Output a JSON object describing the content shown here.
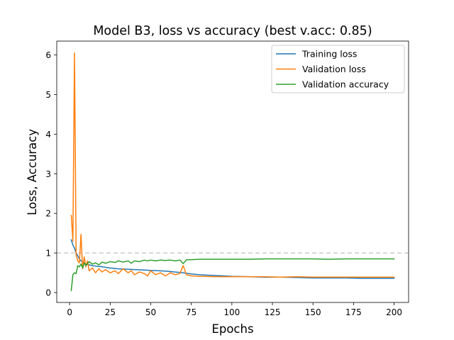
{
  "chart_data": {
    "type": "line",
    "title": "Model B3, loss vs accuracy (best v.acc: 0.85)",
    "xlabel": "Epochs",
    "ylabel": "Loss, Accuracy",
    "xlim": [
      -7.95,
      208.95
    ],
    "ylim": [
      -0.25,
      6.35
    ],
    "xticks": [
      0,
      25,
      50,
      75,
      100,
      125,
      150,
      175,
      200
    ],
    "yticks": [
      0,
      1,
      2,
      3,
      4,
      5,
      6
    ],
    "reference_line": {
      "y": 1.0,
      "style": "dashed",
      "color": "#cccccc"
    },
    "legend_position": "upper right",
    "grid": false,
    "series": [
      {
        "name": "Training loss",
        "color": "#1f77b4",
        "points": [
          [
            1,
            1.33
          ],
          [
            2,
            1.2
          ],
          [
            3,
            1.12
          ],
          [
            4,
            1.0
          ],
          [
            5,
            0.93
          ],
          [
            6,
            0.85
          ],
          [
            7,
            0.8
          ],
          [
            8,
            0.78
          ],
          [
            9,
            0.75
          ],
          [
            10,
            0.72
          ],
          [
            12,
            0.7
          ],
          [
            14,
            0.68
          ],
          [
            16,
            0.67
          ],
          [
            18,
            0.66
          ],
          [
            20,
            0.65
          ],
          [
            25,
            0.62
          ],
          [
            30,
            0.6
          ],
          [
            35,
            0.59
          ],
          [
            40,
            0.58
          ],
          [
            45,
            0.57
          ],
          [
            50,
            0.56
          ],
          [
            55,
            0.55
          ],
          [
            60,
            0.54
          ],
          [
            65,
            0.52
          ],
          [
            70,
            0.5
          ],
          [
            75,
            0.47
          ],
          [
            80,
            0.45
          ],
          [
            90,
            0.43
          ],
          [
            100,
            0.41
          ],
          [
            110,
            0.4
          ],
          [
            120,
            0.39
          ],
          [
            130,
            0.39
          ],
          [
            140,
            0.38
          ],
          [
            150,
            0.37
          ],
          [
            160,
            0.37
          ],
          [
            170,
            0.37
          ],
          [
            180,
            0.36
          ],
          [
            190,
            0.36
          ],
          [
            200,
            0.36
          ]
        ]
      },
      {
        "name": "Validation loss",
        "color": "#ff7f0e",
        "points": [
          [
            1,
            1.95
          ],
          [
            2,
            1.3
          ],
          [
            3,
            6.05
          ],
          [
            4,
            0.95
          ],
          [
            5,
            0.8
          ],
          [
            6,
            0.75
          ],
          [
            7,
            1.47
          ],
          [
            8,
            0.6
          ],
          [
            9,
            0.9
          ],
          [
            10,
            0.65
          ],
          [
            11,
            0.8
          ],
          [
            12,
            0.55
          ],
          [
            14,
            0.62
          ],
          [
            16,
            0.5
          ],
          [
            18,
            0.6
          ],
          [
            20,
            0.52
          ],
          [
            22,
            0.58
          ],
          [
            25,
            0.5
          ],
          [
            28,
            0.55
          ],
          [
            30,
            0.48
          ],
          [
            33,
            0.6
          ],
          [
            36,
            0.5
          ],
          [
            38,
            0.55
          ],
          [
            40,
            0.45
          ],
          [
            43,
            0.52
          ],
          [
            46,
            0.48
          ],
          [
            48,
            0.42
          ],
          [
            50,
            0.55
          ],
          [
            53,
            0.45
          ],
          [
            56,
            0.5
          ],
          [
            59,
            0.42
          ],
          [
            62,
            0.5
          ],
          [
            65,
            0.45
          ],
          [
            68,
            0.48
          ],
          [
            70,
            0.68
          ],
          [
            72,
            0.45
          ],
          [
            75,
            0.42
          ],
          [
            80,
            0.41
          ],
          [
            90,
            0.4
          ],
          [
            100,
            0.4
          ],
          [
            110,
            0.4
          ],
          [
            120,
            0.4
          ],
          [
            130,
            0.39
          ],
          [
            140,
            0.4
          ],
          [
            150,
            0.39
          ],
          [
            160,
            0.39
          ],
          [
            170,
            0.39
          ],
          [
            180,
            0.39
          ],
          [
            190,
            0.39
          ],
          [
            200,
            0.39
          ]
        ]
      },
      {
        "name": "Validation accuracy",
        "color": "#2ca02c",
        "points": [
          [
            1,
            0.05
          ],
          [
            2,
            0.45
          ],
          [
            3,
            0.5
          ],
          [
            4,
            0.48
          ],
          [
            5,
            0.68
          ],
          [
            6,
            0.65
          ],
          [
            7,
            0.72
          ],
          [
            8,
            0.62
          ],
          [
            9,
            0.75
          ],
          [
            10,
            0.68
          ],
          [
            12,
            0.78
          ],
          [
            14,
            0.72
          ],
          [
            16,
            0.75
          ],
          [
            18,
            0.7
          ],
          [
            20,
            0.77
          ],
          [
            22,
            0.74
          ],
          [
            25,
            0.78
          ],
          [
            28,
            0.76
          ],
          [
            30,
            0.8
          ],
          [
            33,
            0.77
          ],
          [
            36,
            0.8
          ],
          [
            38,
            0.74
          ],
          [
            40,
            0.8
          ],
          [
            43,
            0.78
          ],
          [
            46,
            0.82
          ],
          [
            48,
            0.8
          ],
          [
            50,
            0.82
          ],
          [
            53,
            0.8
          ],
          [
            56,
            0.82
          ],
          [
            59,
            0.81
          ],
          [
            62,
            0.82
          ],
          [
            65,
            0.8
          ],
          [
            68,
            0.82
          ],
          [
            70,
            0.73
          ],
          [
            72,
            0.83
          ],
          [
            75,
            0.83
          ],
          [
            80,
            0.84
          ],
          [
            90,
            0.84
          ],
          [
            100,
            0.84
          ],
          [
            110,
            0.84
          ],
          [
            120,
            0.85
          ],
          [
            130,
            0.85
          ],
          [
            140,
            0.85
          ],
          [
            150,
            0.85
          ],
          [
            160,
            0.84
          ],
          [
            170,
            0.85
          ],
          [
            180,
            0.85
          ],
          [
            190,
            0.85
          ],
          [
            200,
            0.85
          ]
        ]
      }
    ]
  }
}
